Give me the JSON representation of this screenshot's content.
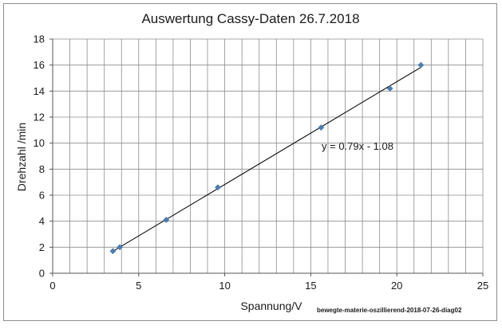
{
  "chart_data": {
    "type": "scatter",
    "title": "Auswertung Cassy-Daten 26.7.2018",
    "xlabel": "Spannung/V",
    "ylabel": "Drehzahl /min",
    "xlim": [
      0,
      25
    ],
    "ylim": [
      0,
      18
    ],
    "xticks": [
      0,
      5,
      10,
      15,
      20,
      25
    ],
    "yticks": [
      0,
      2,
      4,
      6,
      8,
      10,
      12,
      14,
      16,
      18
    ],
    "x_minor_step": 1,
    "grid": true,
    "points": [
      {
        "x": 3.5,
        "y": 1.7
      },
      {
        "x": 3.9,
        "y": 2.0
      },
      {
        "x": 6.6,
        "y": 4.1
      },
      {
        "x": 9.6,
        "y": 6.6
      },
      {
        "x": 15.6,
        "y": 11.2
      },
      {
        "x": 19.6,
        "y": 14.2
      },
      {
        "x": 21.4,
        "y": 16.0
      }
    ],
    "trendline": {
      "slope": 0.79,
      "intercept": -1.08,
      "x_from": 3.5,
      "x_to": 21.4
    },
    "equation": "y = 0.79x - 1.08",
    "source_label": "bewegte-materie-oszillierend-2018-07-26-diag02",
    "marker_color": "#4a7eb6",
    "line_color": "#000000",
    "grid_color": "#8c8c8c"
  }
}
